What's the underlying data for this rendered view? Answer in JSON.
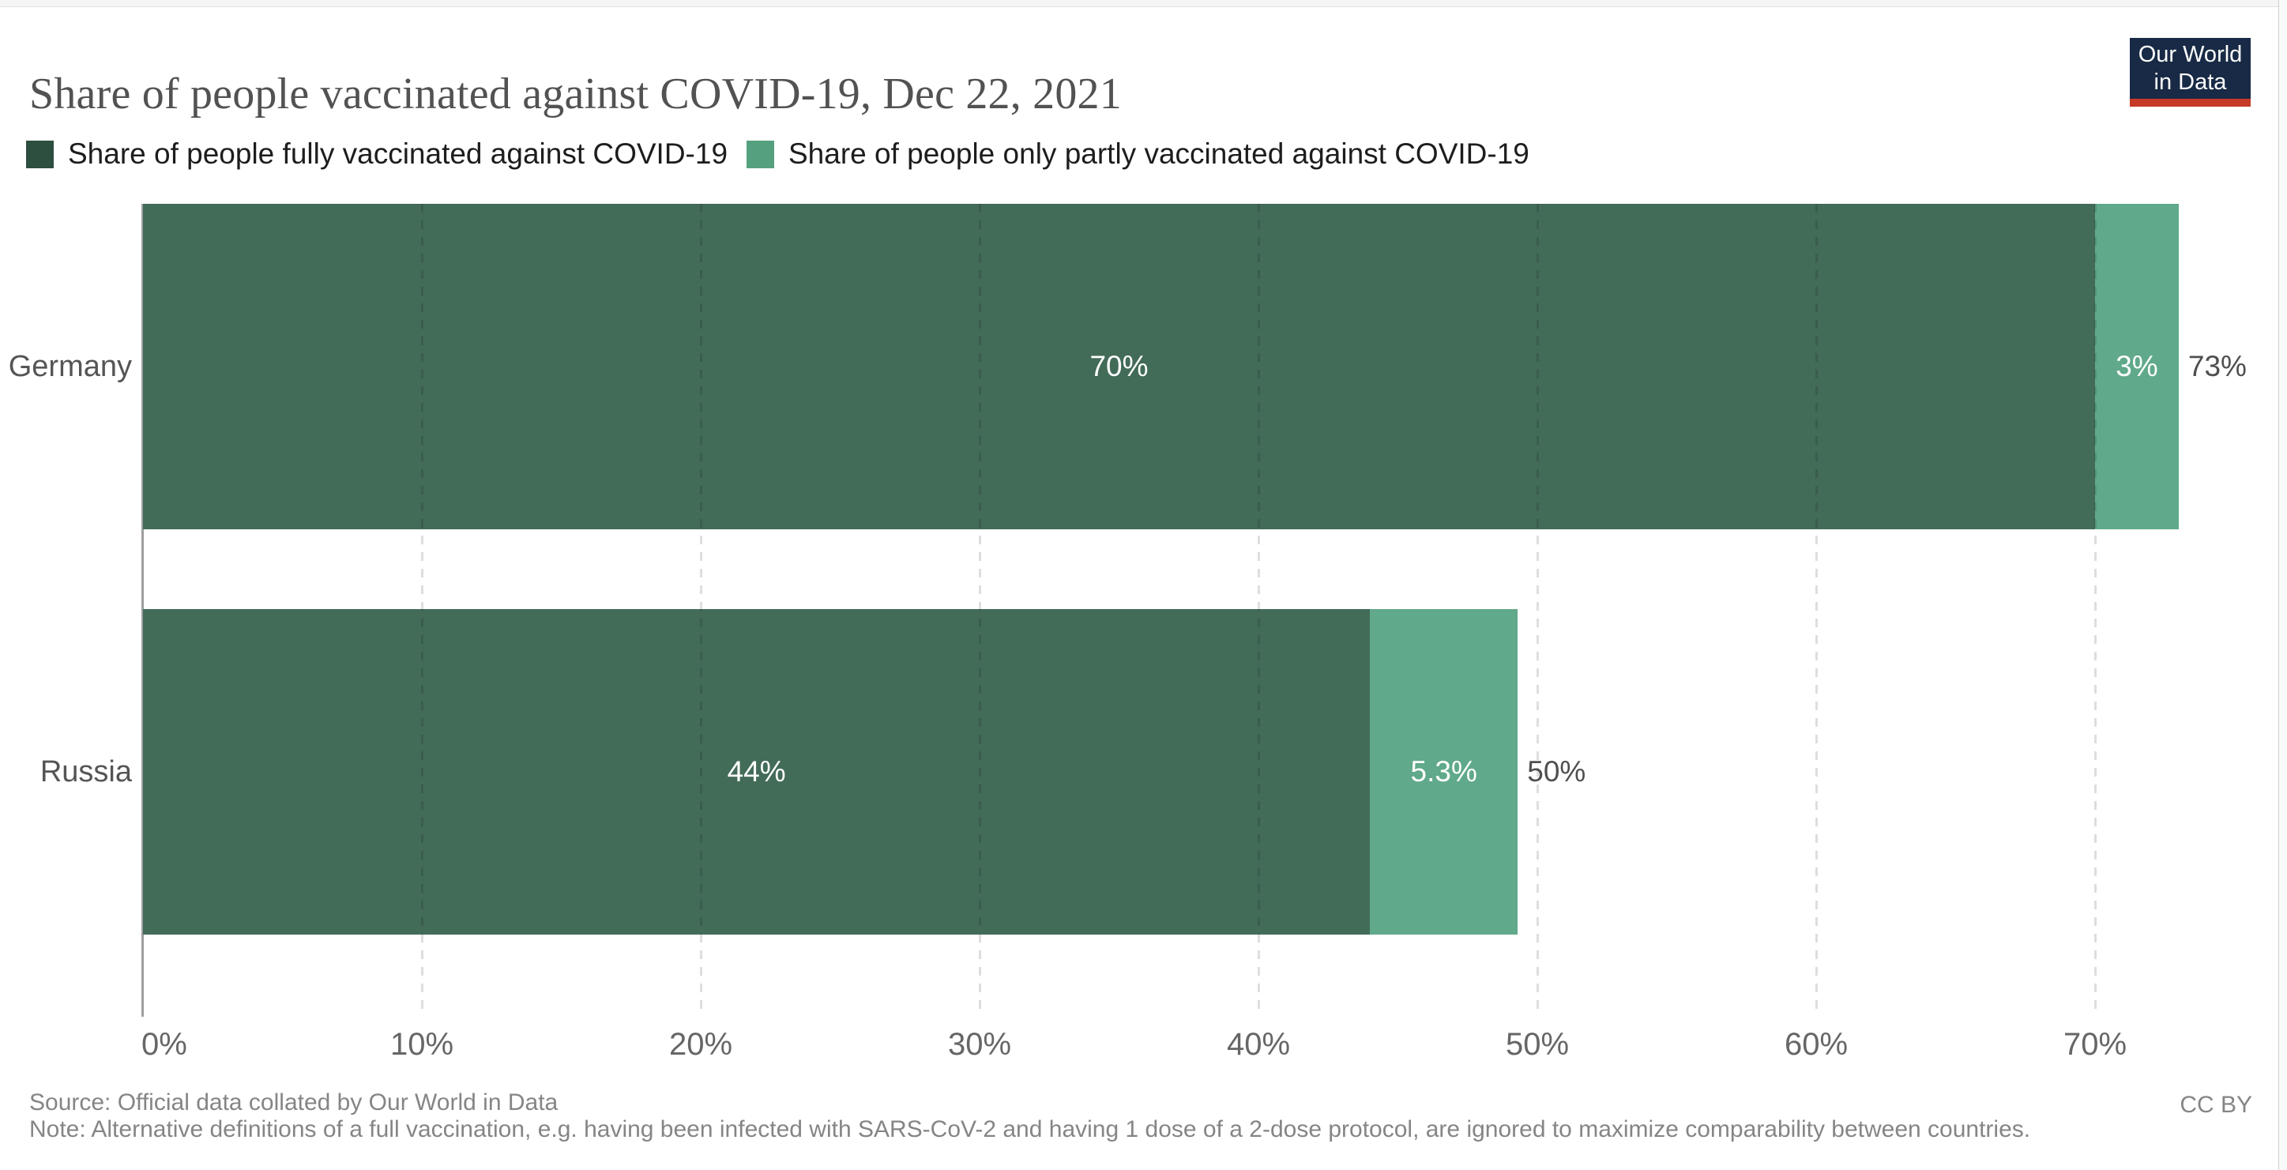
{
  "header": {
    "title": "Share of people vaccinated against COVID-19, Dec 22, 2021",
    "logo": {
      "line1": "Our World",
      "line2": "in Data",
      "bg_color": "#182a45",
      "accent_color": "#c63a28"
    }
  },
  "legend": {
    "items": [
      {
        "label": "Share of people fully vaccinated against COVID-19",
        "color": "#2d4f3f"
      },
      {
        "label": "Share of people only partly vaccinated against COVID-19",
        "color": "#55a17f"
      }
    ]
  },
  "chart_data": {
    "type": "bar",
    "orientation": "horizontal",
    "stacked": true,
    "title": "Share of people vaccinated against COVID-19, Dec 22, 2021",
    "categories": [
      "Germany",
      "Russia"
    ],
    "series": [
      {
        "name": "Share of people fully vaccinated against COVID-19",
        "color": "#426b58",
        "values": [
          70,
          44
        ],
        "value_labels": [
          "70%",
          "44%"
        ]
      },
      {
        "name": "Share of people only partly vaccinated against COVID-19",
        "color": "#60a98a",
        "values": [
          3,
          5.3
        ],
        "value_labels": [
          "3%",
          "5.3%"
        ]
      }
    ],
    "totals": [
      73,
      50
    ],
    "total_labels": [
      "73%",
      "50%"
    ],
    "x_ticks": [
      0,
      10,
      20,
      30,
      40,
      50,
      60,
      70
    ],
    "x_tick_labels": [
      "0%",
      "10%",
      "20%",
      "30%",
      "40%",
      "50%",
      "60%",
      "70%"
    ],
    "xlim": [
      0,
      76.8
    ],
    "grid": "vertical-dashed",
    "legend_position": "top",
    "value_label_color": "#ffffff",
    "total_label_color": "#4f4f4f"
  },
  "footer": {
    "source": "Source: Official data collated by Our World in Data",
    "note": "Note: Alternative definitions of a full vaccination, e.g. having been infected with SARS-CoV-2 and having 1 dose of a 2-dose protocol, are ignored to maximize comparability between countries.",
    "license": "CC BY"
  }
}
